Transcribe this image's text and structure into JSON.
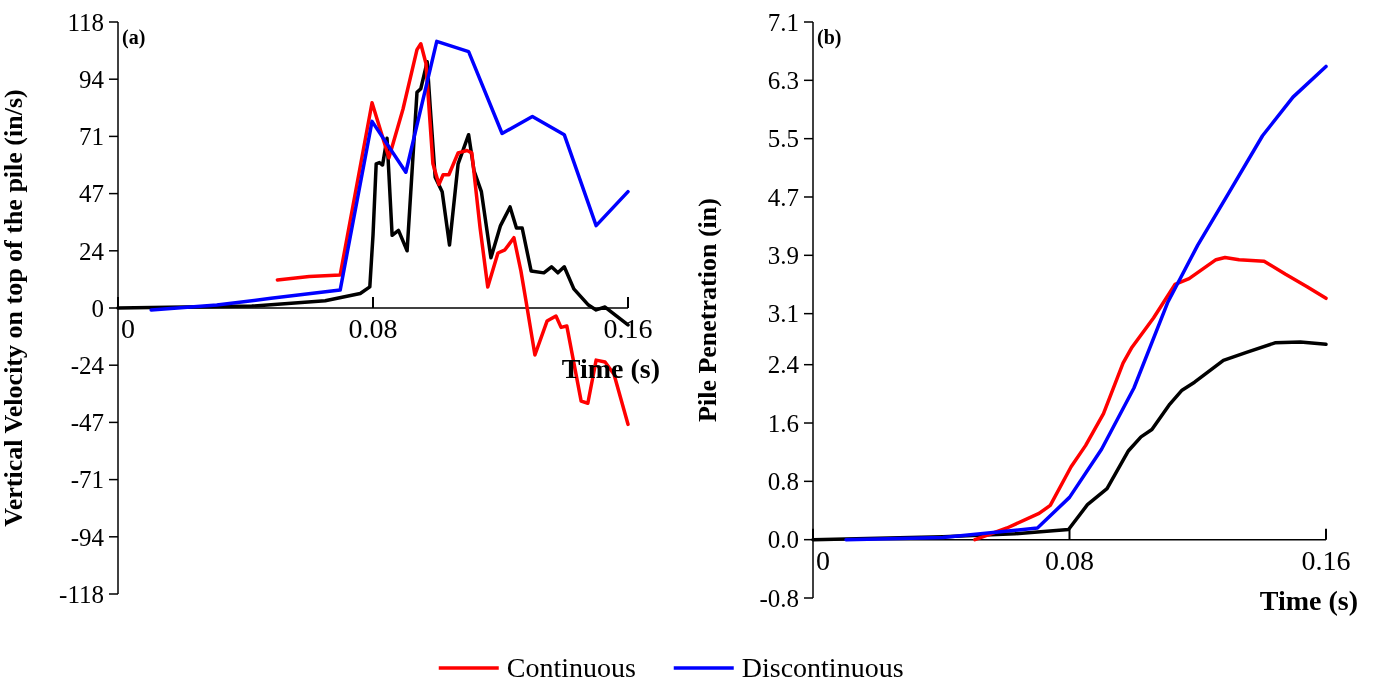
{
  "chart_data": [
    {
      "type": "line",
      "xlabel": "Time (s)",
      "ylabel": "Vertical Velocity on top of the pile (in/s)",
      "annotations": [
        "(a)"
      ],
      "xlim": [
        0,
        0.16
      ],
      "xticks": [
        0,
        0.08,
        0.16
      ],
      "ylim": [
        -118,
        118
      ],
      "yticks": [
        {
          "value": -118,
          "label": "-118"
        },
        {
          "value": -94.4,
          "label": "-94"
        },
        {
          "value": -70.8,
          "label": "-71"
        },
        {
          "value": -47.2,
          "label": "-47"
        },
        {
          "value": -23.6,
          "label": "-24"
        },
        0,
        {
          "value": 23.6,
          "label": "24"
        },
        {
          "value": 47.2,
          "label": "47"
        },
        {
          "value": 70.8,
          "label": "71"
        },
        {
          "value": 94.4,
          "label": "94"
        },
        {
          "value": 118,
          "label": "118"
        }
      ],
      "legend": "bottom",
      "series": [
        {
          "color": "#000000",
          "x": [
            0,
            0.042,
            0.065,
            0.076,
            0.079,
            0.08,
            0.081,
            0.082,
            0.083,
            0.0844,
            0.086,
            0.088,
            0.0907,
            0.0938,
            0.095,
            0.097,
            0.098,
            0.0995,
            0.1017,
            0.104,
            0.1067,
            0.11,
            0.1117,
            0.114,
            0.117,
            0.12,
            0.123,
            0.125,
            0.1268,
            0.1296,
            0.1336,
            0.136,
            0.138,
            0.14,
            0.143,
            0.1476,
            0.15,
            0.1528,
            0.16
          ],
          "values": [
            0,
            0.8,
            3,
            6,
            8.7,
            30,
            59.5,
            60,
            59,
            70,
            30,
            32,
            23.6,
            89,
            90.5,
            101.6,
            82,
            54,
            48,
            26,
            59.5,
            71.5,
            56.6,
            48,
            20.7,
            34,
            41.7,
            33,
            33,
            15.3,
            14.5,
            17,
            14.5,
            17,
            7.9,
            1.2,
            -0.8,
            0.4,
            -7
          ]
        },
        {
          "name": "Continuous",
          "color": "#ff0000",
          "x": [
            0.05,
            0.06,
            0.0697,
            0.0797,
            0.085,
            0.0894,
            0.0938,
            0.095,
            0.0966,
            0.0988,
            0.1007,
            0.102,
            0.1038,
            0.1067,
            0.1095,
            0.111,
            0.1136,
            0.116,
            0.1192,
            0.1214,
            0.1242,
            0.1264,
            0.128,
            0.1308,
            0.1346,
            0.1374,
            0.139,
            0.1408,
            0.1453,
            0.1474,
            0.15,
            0.1528,
            0.1556,
            0.16
          ],
          "values": [
            11.6,
            13,
            13.6,
            84.7,
            62,
            82,
            106.6,
            109,
            101,
            59.5,
            51,
            55,
            55,
            64,
            65,
            64,
            33,
            8.7,
            22.7,
            24,
            29,
            15.3,
            2.9,
            -19.4,
            -5.4,
            -3.3,
            -8,
            -7.4,
            -38.4,
            -39.3,
            -21.5,
            -22.3,
            -27.3,
            -48
          ]
        },
        {
          "name": "Discontinuous",
          "color": "#0000ff",
          "x": [
            0.0104,
            0.031,
            0.048,
            0.0697,
            0.0797,
            0.0903,
            0.1,
            0.11,
            0.1205,
            0.13,
            0.14,
            0.15,
            0.16
          ],
          "values": [
            -0.8,
            1.2,
            4,
            7.4,
            77,
            56,
            110,
            105.8,
            72,
            79,
            71.5,
            34,
            48
          ]
        }
      ]
    },
    {
      "type": "line",
      "xlabel": "Time (s)",
      "ylabel": "Pile Penetration (in)",
      "annotations": [
        "(b)"
      ],
      "xlim": [
        0,
        0.16
      ],
      "xticks": [
        0,
        0.08,
        0.16
      ],
      "ylim": [
        -0.8,
        7.1
      ],
      "yticks": [
        -0.8,
        {
          "value": 0,
          "label": "0.0"
        },
        0.8,
        1.6,
        2.4,
        3.1,
        3.9,
        4.7,
        5.5,
        6.3,
        7.1
      ],
      "series": [
        {
          "color": "#000000",
          "x": [
            0,
            0.0405,
            0.063,
            0.0797,
            0.0856,
            0.0917,
            0.0984,
            0.1023,
            0.1057,
            0.1113,
            0.1151,
            0.119,
            0.128,
            0.1352,
            0.1441,
            0.152,
            0.16
          ],
          "values": [
            0,
            0.04,
            0.08,
            0.14,
            0.48,
            0.7,
            1.22,
            1.41,
            1.51,
            1.86,
            2.05,
            2.16,
            2.46,
            2.57,
            2.7,
            2.71,
            2.68
          ]
        },
        {
          "color": "#ff0000",
          "x": [
            0.0505,
            0.0605,
            0.0705,
            0.074,
            0.0805,
            0.085,
            0.0906,
            0.0967,
            0.0995,
            0.1062,
            0.1129,
            0.1173,
            0.1257,
            0.1285,
            0.1329,
            0.1407,
            0.1474,
            0.1541,
            0.16
          ],
          "values": [
            0,
            0.16,
            0.36,
            0.47,
            1,
            1.29,
            1.73,
            2.42,
            2.64,
            3.04,
            3.5,
            3.58,
            3.84,
            3.87,
            3.84,
            3.82,
            3.64,
            3.47,
            3.31
          ]
        },
        {
          "color": "#0000ff",
          "x": [
            0.0103,
            0.0405,
            0.07,
            0.08,
            0.09,
            0.1001,
            0.1107,
            0.12,
            0.1296,
            0.1402,
            0.1497,
            0.16
          ],
          "values": [
            0,
            0.03,
            0.16,
            0.58,
            1.24,
            2.08,
            3.26,
            4.04,
            4.75,
            5.54,
            6.07,
            6.49
          ]
        }
      ]
    }
  ]
}
